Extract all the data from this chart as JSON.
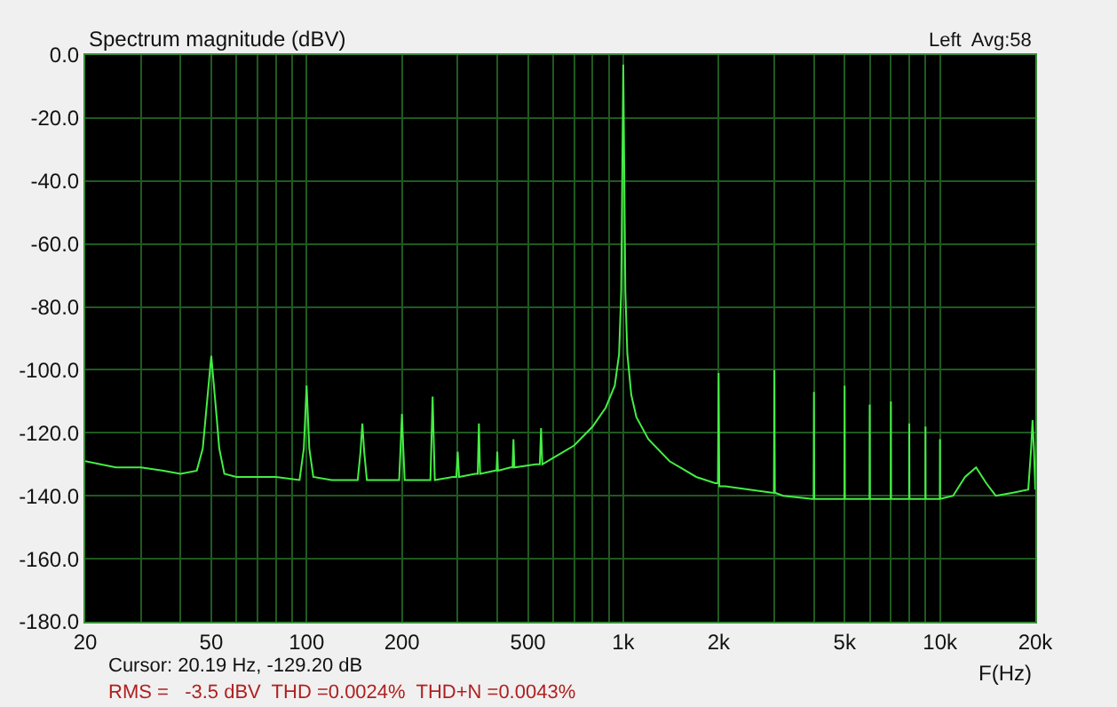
{
  "chart_data": {
    "type": "line",
    "title": "Spectrum magnitude (dBV)",
    "xlabel": "F(Hz)",
    "annotations": [
      "Left  Avg:58",
      "Cursor: 20.19 Hz, -129.20 dB",
      "RMS =   -3.5 dBV  THD =0.0024%  THD+N =0.0043%"
    ],
    "log": "x",
    "grid": true,
    "marker": "none",
    "line_style": "solid",
    "xlim": [
      20,
      20000
    ],
    "ylim": [
      -180,
      0
    ],
    "xticks": [
      20,
      {
        "value": 30,
        "label": null
      },
      {
        "value": 40,
        "label": null
      },
      50,
      {
        "value": 60,
        "label": null
      },
      {
        "value": 70,
        "label": null
      },
      {
        "value": 80,
        "label": null
      },
      {
        "value": 90,
        "label": null
      },
      100,
      200,
      {
        "value": 300,
        "label": null
      },
      {
        "value": 400,
        "label": null
      },
      500,
      {
        "value": 600,
        "label": null
      },
      {
        "value": 700,
        "label": null
      },
      {
        "value": 800,
        "label": null
      },
      {
        "value": 900,
        "label": null
      },
      {
        "value": 1000,
        "label": "1k"
      },
      {
        "value": 2000,
        "label": "2k"
      },
      {
        "value": 3000,
        "label": null
      },
      {
        "value": 4000,
        "label": null
      },
      {
        "value": 5000,
        "label": "5k"
      },
      {
        "value": 6000,
        "label": null
      },
      {
        "value": 7000,
        "label": null
      },
      {
        "value": 8000,
        "label": null
      },
      {
        "value": 9000,
        "label": null
      },
      {
        "value": 10000,
        "label": "10k"
      },
      {
        "value": 20000,
        "label": "20k"
      }
    ],
    "yticks": [
      {
        "value": 0,
        "label": "0.0"
      },
      {
        "value": -20,
        "label": "-20.0"
      },
      {
        "value": -40,
        "label": "-40.0"
      },
      {
        "value": -60,
        "label": "-60.0"
      },
      {
        "value": -80,
        "label": "-80.0"
      },
      {
        "value": -100,
        "label": "-100.0"
      },
      {
        "value": -120,
        "label": "-120.0"
      },
      {
        "value": -140,
        "label": "-140.0"
      },
      {
        "value": -160,
        "label": "-160.0"
      },
      {
        "value": -180,
        "label": "-180.0"
      }
    ],
    "series": [
      {
        "color": "#44ee44",
        "x": [
          20,
          25,
          30,
          35,
          40,
          45,
          47,
          48,
          50,
          52,
          53,
          55,
          60,
          70,
          80,
          95,
          98,
          100,
          102,
          105,
          120,
          145,
          148,
          150,
          152,
          155,
          180,
          196,
          198,
          200,
          202,
          204,
          240,
          246,
          248,
          250,
          252,
          254,
          290,
          297,
          300,
          303,
          340,
          347,
          350,
          353,
          395,
          398,
          400,
          402,
          440,
          447,
          450,
          453,
          530,
          545,
          550,
          555,
          600,
          700,
          800,
          880,
          940,
          970,
          985,
          1000,
          1015,
          1030,
          1060,
          1100,
          1200,
          1400,
          1700,
          1950,
          1990,
          2000,
          2010,
          2100,
          2500,
          2950,
          2990,
          3000,
          3010,
          3200,
          3950,
          3990,
          4000,
          4010,
          4500,
          4950,
          4990,
          5000,
          5010,
          5900,
          5990,
          6000,
          6010,
          6900,
          6990,
          7000,
          7010,
          7900,
          7990,
          8000,
          8010,
          8900,
          8990,
          9000,
          9010,
          9900,
          9990,
          10000,
          10010,
          11000,
          12000,
          13000,
          14000,
          15000,
          17000,
          19000,
          19400,
          19600,
          19800,
          20000
        ],
        "values": [
          -129,
          -131,
          -131,
          -132,
          -133,
          -132,
          -125,
          -115,
          -95.5,
          -115,
          -125,
          -133,
          -134,
          -134,
          -134,
          -135,
          -125,
          -105,
          -125,
          -134,
          -135,
          -135,
          -126,
          -117,
          -126,
          -135,
          -135,
          -135,
          -125,
          -114,
          -125,
          -135,
          -135,
          -135,
          -122,
          -108.5,
          -122,
          -135,
          -134,
          -134,
          -126,
          -134,
          -133,
          -133,
          -117,
          -133,
          -132,
          -132,
          -126,
          -132,
          -131,
          -131,
          -122,
          -131,
          -130,
          -130,
          -118.5,
          -130,
          -128,
          -124,
          -118,
          -112,
          -105,
          -95,
          -75,
          -3,
          -75,
          -95,
          -108,
          -115,
          -122,
          -129,
          -134,
          -136,
          -136,
          -101,
          -137,
          -137,
          -138,
          -139,
          -139,
          -100,
          -139,
          -140,
          -141,
          -141,
          -107,
          -141,
          -141,
          -141,
          -141,
          -105,
          -141,
          -141,
          -141,
          -111,
          -141,
          -141,
          -141,
          -110,
          -141,
          -141,
          -141,
          -117,
          -141,
          -141,
          -141,
          -118,
          -141,
          -141,
          -141,
          -122,
          -141,
          -140,
          -134,
          -131,
          -136,
          -140,
          -139,
          -138,
          -125,
          -116,
          -125,
          -138
        ]
      }
    ]
  }
}
